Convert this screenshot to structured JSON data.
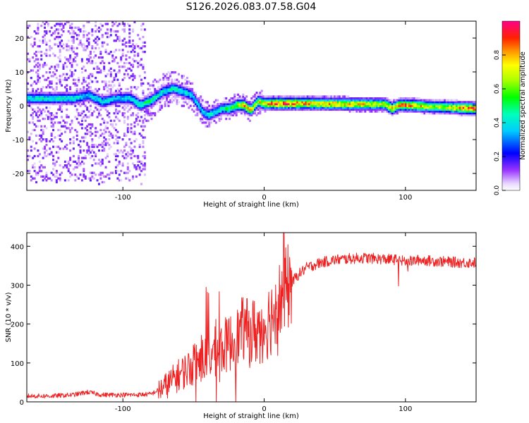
{
  "title": "S126.2026.083.07.58.G04",
  "chart_data": [
    {
      "type": "heatmap",
      "name": "spectrogram",
      "xlabel": "Height of straight line (km)",
      "ylabel": "Frequency (Hz)",
      "xlim": [
        -168,
        150
      ],
      "ylim": [
        -25,
        25
      ],
      "xticks": [
        -100,
        0,
        100
      ],
      "xtick_labels": [
        "-100",
        "0",
        "100"
      ],
      "yticks": [
        -20,
        -10,
        0,
        10,
        20
      ],
      "ytick_labels": [
        "-20",
        "-10",
        "0",
        "10",
        "20"
      ],
      "ridge": {
        "x": [
          -135,
          -125,
          -115,
          -105,
          -95,
          -88,
          -80,
          -72,
          -65,
          -58,
          -52,
          -47,
          -44,
          -40,
          -35,
          -30,
          -25,
          -20,
          -15,
          -10,
          -5,
          0,
          10,
          30,
          60,
          85,
          90,
          95,
          100,
          120,
          148
        ],
        "freq": [
          2,
          3,
          1,
          2,
          2,
          0,
          1.5,
          4,
          5,
          4,
          3,
          0,
          -2,
          -3,
          -2,
          -1,
          -1,
          0,
          0,
          -1.5,
          1,
          0.5,
          0.5,
          0.5,
          0.3,
          0.3,
          -1,
          0,
          0,
          -0.5,
          -1
        ],
        "peak_amplitude": [
          0.45,
          0.4,
          0.45,
          0.4,
          0.45,
          0.5,
          0.5,
          0.45,
          0.45,
          0.45,
          0.4,
          0.4,
          0.4,
          0.45,
          0.45,
          0.5,
          0.55,
          0.7,
          0.85,
          0.8,
          0.7,
          0.85,
          0.95,
          0.85,
          0.8,
          0.7,
          0.85,
          0.8,
          0.9,
          0.65,
          0.95
        ]
      },
      "colorbar": {
        "label": "Normalized spectral amplitude",
        "range": [
          0,
          1
        ],
        "ticks": [
          0,
          0.2,
          0.4,
          0.6,
          0.8
        ],
        "tick_labels": [
          "0.0",
          "0.2",
          "0.4",
          "0.6",
          "0.8"
        ],
        "colormap": [
          "#ffffff",
          "#7700ff",
          "#0000ff",
          "#00ffff",
          "#00ff00",
          "#ffff00",
          "#ff8800",
          "#ff0000",
          "#ff0077"
        ]
      }
    },
    {
      "type": "line",
      "name": "snr",
      "xlabel": "Height of straight line (km)",
      "ylabel": "SNR (10 * v/v)",
      "xlim": [
        -168,
        150
      ],
      "ylim": [
        0,
        435
      ],
      "xticks": [
        -100,
        0,
        100
      ],
      "xtick_labels": [
        "-100",
        "0",
        "100"
      ],
      "yticks": [
        0,
        100,
        200,
        300,
        400
      ],
      "ytick_labels": [
        "0",
        "100",
        "200",
        "300",
        "400"
      ],
      "series": [
        {
          "name": "SNR",
          "color": "#ee2222",
          "x": [
            -168,
            -150,
            -135,
            -125,
            -115,
            -100,
            -90,
            -80,
            -70,
            -60,
            -50,
            -40,
            -30,
            -20,
            -15,
            -10,
            -5,
            0,
            5,
            10,
            15,
            20,
            25,
            30,
            40,
            50,
            60,
            70,
            80,
            90,
            95,
            100,
            105,
            110,
            120,
            130,
            140,
            150
          ],
          "y": [
            15,
            15,
            18,
            25,
            18,
            18,
            18,
            20,
            40,
            70,
            95,
            115,
            140,
            160,
            190,
            175,
            185,
            195,
            220,
            255,
            285,
            310,
            330,
            345,
            358,
            365,
            368,
            370,
            368,
            366,
            365,
            360,
            362,
            365,
            362,
            360,
            358,
            358
          ]
        }
      ]
    }
  ]
}
